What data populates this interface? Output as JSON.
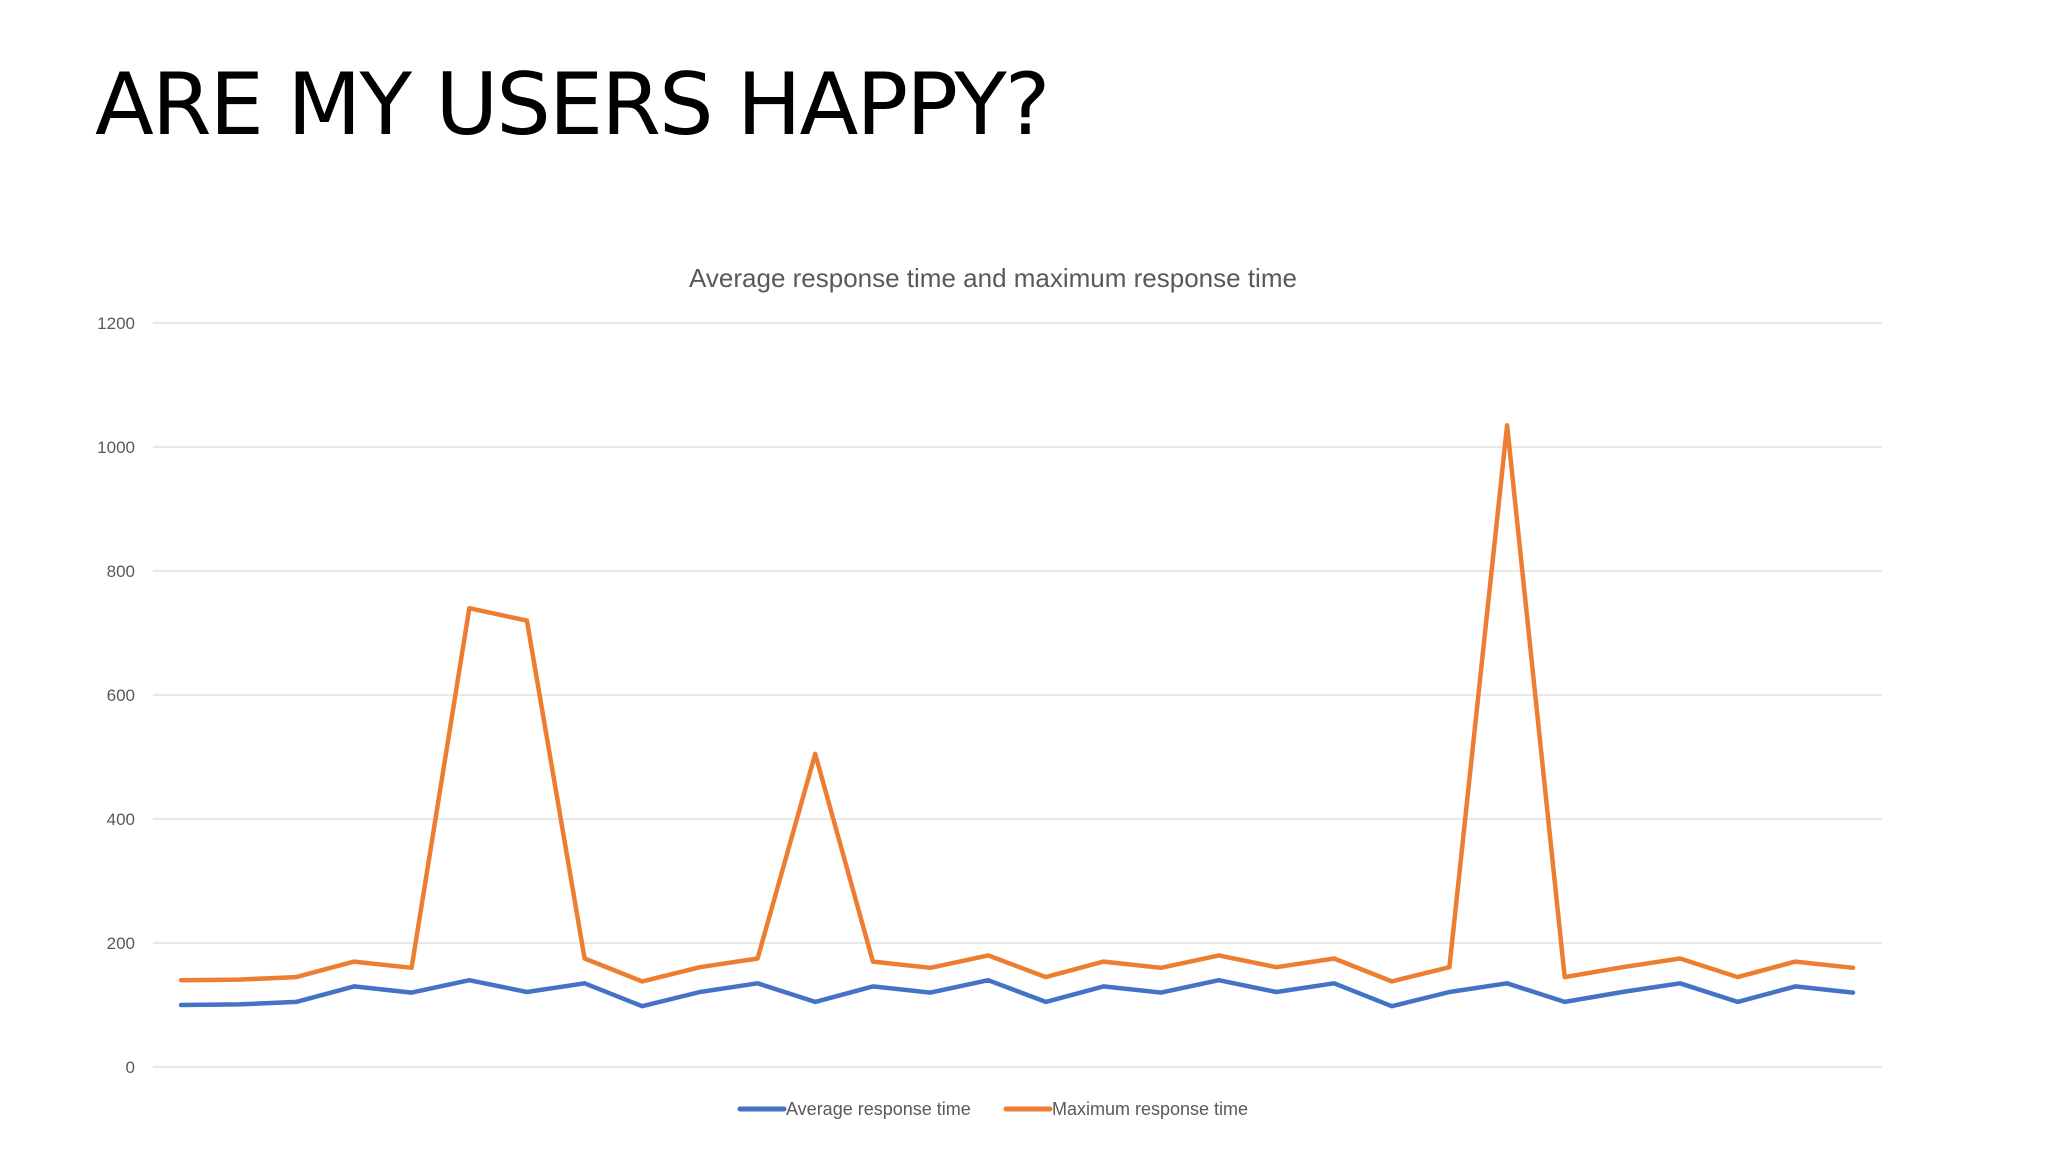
{
  "slide": {
    "title": "ARE MY USERS HAPPY?"
  },
  "chart_data": {
    "type": "line",
    "title": "Average response time and maximum response time",
    "xlabel": "",
    "ylabel": "",
    "ylim": [
      0,
      1200
    ],
    "yticks": [
      "0",
      "200",
      "400",
      "600",
      "800",
      "1000",
      "1200"
    ],
    "grid": true,
    "legend_position": "bottom",
    "series": [
      {
        "name": "Average response time",
        "color": "#4472c4",
        "values": [
          100,
          101,
          105,
          130,
          120,
          140,
          121,
          135,
          98,
          121,
          135,
          105,
          130,
          120,
          140,
          105,
          130,
          120,
          140,
          121,
          135,
          98,
          121,
          135,
          105,
          121,
          135,
          105,
          130,
          120
        ]
      },
      {
        "name": "Maximum response time",
        "color": "#ed7d31",
        "values": [
          140,
          141,
          145,
          170,
          160,
          740,
          720,
          175,
          138,
          161,
          175,
          505,
          170,
          160,
          180,
          145,
          170,
          160,
          180,
          161,
          175,
          138,
          161,
          1035,
          145,
          161,
          175,
          145,
          170,
          160
        ]
      }
    ]
  }
}
